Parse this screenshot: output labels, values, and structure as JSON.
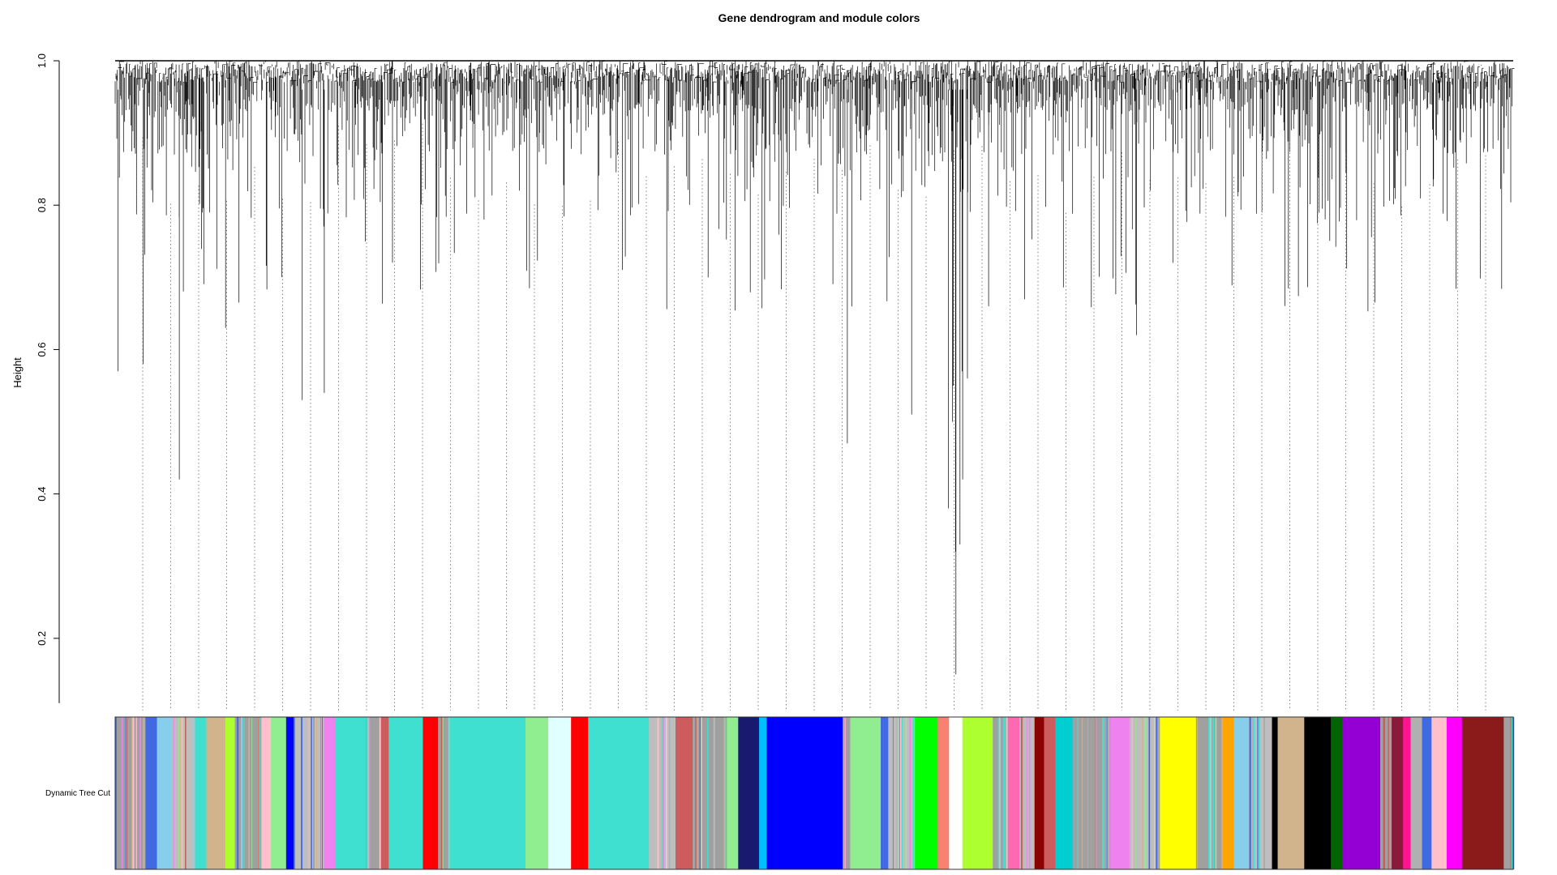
{
  "chart_data": {
    "type": "dendrogram",
    "title": "Gene dendrogram and module colors",
    "xlabel": "",
    "ylabel": "Height",
    "ylim": [
      0.1,
      1.0
    ],
    "y_ticks": [
      0.2,
      0.4,
      0.6,
      0.8,
      1.0
    ],
    "y_tick_labels": [
      "0.2",
      "0.4",
      "0.6",
      "0.8",
      "1.0"
    ],
    "grid": false,
    "legend": "none",
    "color_row_label": "Dynamic Tree Cut",
    "notable_low_merge_heights": [
      0.57,
      0.58,
      0.42,
      0.63,
      0.53,
      0.54,
      0.47,
      0.55,
      0.56,
      0.15,
      0.32,
      0.33,
      0.38,
      0.42,
      0.5,
      0.51,
      0.57,
      0.62,
      0.66,
      0.72,
      0.79
    ],
    "module_color_bar": [
      {
        "color": "#a0a0a0",
        "width": 1.6
      },
      {
        "color": "#4169e1",
        "width": 0.6
      },
      {
        "color": "#87ceeb",
        "width": 0.8
      },
      {
        "color": "#bebebe",
        "width": 1.2
      },
      {
        "color": "#40e0d0",
        "width": 0.6
      },
      {
        "color": "#d2b48c",
        "width": 1.0
      },
      {
        "color": "#adff2f",
        "width": 0.5
      },
      {
        "color": "#a0a0a0",
        "width": 1.4
      },
      {
        "color": "#ffc0cb",
        "width": 0.5
      },
      {
        "color": "#90ee90",
        "width": 0.8
      },
      {
        "color": "#0000ff",
        "width": 0.4
      },
      {
        "color": "#bebebe",
        "width": 1.6
      },
      {
        "color": "#ee82ee",
        "width": 0.6
      },
      {
        "color": "#40e0d0",
        "width": 1.6
      },
      {
        "color": "#a0a0a0",
        "width": 0.8
      },
      {
        "color": "#cd5c5c",
        "width": 0.4
      },
      {
        "color": "#40e0d0",
        "width": 1.8
      },
      {
        "color": "#ff0000",
        "width": 0.8
      },
      {
        "color": "#a0a0a0",
        "width": 0.6
      },
      {
        "color": "#40e0d0",
        "width": 4.0
      },
      {
        "color": "#90ee90",
        "width": 1.2
      },
      {
        "color": "#e0ffff",
        "width": 1.2
      },
      {
        "color": "#ff0000",
        "width": 0.9
      },
      {
        "color": "#40e0d0",
        "width": 3.2
      },
      {
        "color": "#bebebe",
        "width": 1.4
      },
      {
        "color": "#cd5c5c",
        "width": 0.9
      },
      {
        "color": "#a0a0a0",
        "width": 1.8
      },
      {
        "color": "#90ee90",
        "width": 0.6
      },
      {
        "color": "#191970",
        "width": 1.1
      },
      {
        "color": "#00bfff",
        "width": 0.4
      },
      {
        "color": "#0000ff",
        "width": 4.0
      },
      {
        "color": "#a0a0a0",
        "width": 0.4
      },
      {
        "color": "#90ee90",
        "width": 1.6
      },
      {
        "color": "#4169e1",
        "width": 0.4
      },
      {
        "color": "#bebebe",
        "width": 1.4
      },
      {
        "color": "#00ff00",
        "width": 1.2
      },
      {
        "color": "#fa8072",
        "width": 0.6
      },
      {
        "color": "#ffffff",
        "width": 0.7
      },
      {
        "color": "#adff2f",
        "width": 1.6
      },
      {
        "color": "#a0a0a0",
        "width": 0.8
      },
      {
        "color": "#ff69b4",
        "width": 0.6
      },
      {
        "color": "#bebebe",
        "width": 0.8
      },
      {
        "color": "#8b0000",
        "width": 0.5
      },
      {
        "color": "#cd5c5c",
        "width": 0.6
      },
      {
        "color": "#00ced1",
        "width": 0.9
      },
      {
        "color": "#a0a0a0",
        "width": 2.0
      },
      {
        "color": "#ee82ee",
        "width": 1.0
      },
      {
        "color": "#bebebe",
        "width": 1.6
      },
      {
        "color": "#ffff00",
        "width": 1.9
      },
      {
        "color": "#a0a0a0",
        "width": 1.4
      },
      {
        "color": "#ffa500",
        "width": 0.6
      },
      {
        "color": "#87ceeb",
        "width": 0.8
      },
      {
        "color": "#bebebe",
        "width": 1.2
      },
      {
        "color": "#000000",
        "width": 0.3
      },
      {
        "color": "#d2b48c",
        "width": 1.4
      },
      {
        "color": "#000000",
        "width": 1.4
      },
      {
        "color": "#006400",
        "width": 0.6
      },
      {
        "color": "#9400d3",
        "width": 2.0
      },
      {
        "color": "#a0a0a0",
        "width": 0.6
      },
      {
        "color": "#8b1a3a",
        "width": 0.6
      },
      {
        "color": "#ff1493",
        "width": 0.4
      },
      {
        "color": "#b0b0b0",
        "width": 0.6
      },
      {
        "color": "#4169e1",
        "width": 0.5
      },
      {
        "color": "#ffc0cb",
        "width": 0.8
      },
      {
        "color": "#ff00ff",
        "width": 0.8
      },
      {
        "color": "#8b1a1a",
        "width": 2.2
      },
      {
        "color": "#a0a0a0",
        "width": 0.5
      }
    ],
    "colors": {
      "tree": "#000000",
      "dotted_leader": "#808080"
    }
  }
}
